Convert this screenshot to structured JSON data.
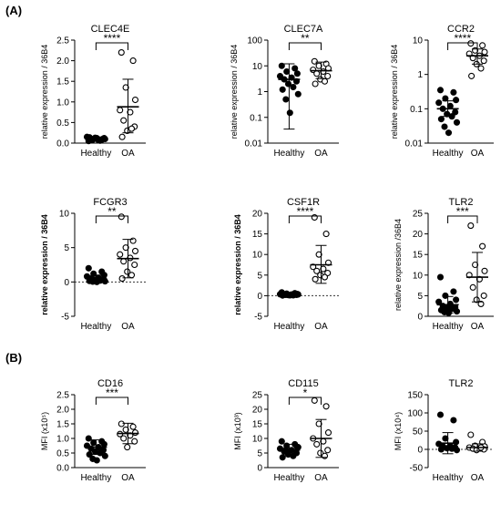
{
  "panels": [
    {
      "label": "(A)"
    },
    {
      "label": "(B)"
    }
  ],
  "colors": {
    "ink": "#000000",
    "zero_line": "#333333",
    "open_fill": "#ffffff"
  },
  "chart_data": [
    {
      "type": "scatter",
      "title": "CLEC4E",
      "ylabel": "relative expression / 36B4",
      "yscale": "linear",
      "ylim": [
        0,
        2.5
      ],
      "yticks": [
        0,
        0.5,
        1.0,
        1.5,
        2.0,
        2.5
      ],
      "yticklabels": [
        "0.0",
        "0.5",
        "1.0",
        "1.5",
        "2.0",
        "2.5"
      ],
      "zero_line": false,
      "significance": "****",
      "categories": [
        "Healthy",
        "OA"
      ],
      "series": [
        {
          "name": "Healthy",
          "marker": "filled",
          "mean": 0.1,
          "sd_low": 0.05,
          "sd_high": 0.15,
          "values": [
            0.05,
            0.08,
            0.1,
            0.12,
            0.15,
            0.07,
            0.09,
            0.11,
            0.13,
            0.06,
            0.14,
            0.1,
            0.08,
            0.12
          ]
        },
        {
          "name": "OA",
          "marker": "open",
          "mean": 0.88,
          "sd_low": 0.25,
          "sd_high": 1.55,
          "values": [
            2.2,
            2.0,
            1.35,
            1.05,
            0.8,
            0.75,
            0.55,
            0.4,
            0.3,
            0.35,
            0.15
          ]
        }
      ]
    },
    {
      "type": "scatter",
      "title": "CLEC7A",
      "ylabel": "relative expression / 36B4",
      "yscale": "log",
      "ylim": [
        0.01,
        100
      ],
      "yticks": [
        0.01,
        0.1,
        1,
        10,
        100
      ],
      "yticklabels": [
        "0.01",
        "0.1",
        "1",
        "10",
        "100"
      ],
      "zero_line": false,
      "significance": "**",
      "categories": [
        "Healthy",
        "OA"
      ],
      "series": [
        {
          "name": "Healthy",
          "marker": "filled",
          "mean": 3.0,
          "sd_low": 0.035,
          "sd_high": 12,
          "values": [
            10,
            8,
            6,
            5,
            4,
            3.5,
            3,
            2.5,
            2,
            1.5,
            1.2,
            0.8,
            0.5,
            0.15
          ]
        },
        {
          "name": "OA",
          "marker": "open",
          "mean": 6.5,
          "sd_low": 3.2,
          "sd_high": 14,
          "values": [
            15,
            12,
            10,
            8,
            7,
            6,
            5,
            4,
            3,
            2.5,
            2
          ]
        }
      ]
    },
    {
      "type": "scatter",
      "title": "CCR2",
      "ylabel": "relative expression / 36B4",
      "yscale": "log",
      "ylim": [
        0.01,
        10
      ],
      "yticks": [
        0.01,
        0.1,
        1,
        10
      ],
      "yticklabels": [
        "0.01",
        "0.1",
        "1",
        "10"
      ],
      "zero_line": false,
      "significance": "****",
      "categories": [
        "Healthy",
        "OA"
      ],
      "series": [
        {
          "name": "Healthy",
          "marker": "filled",
          "mean": 0.1,
          "sd_low": 0.06,
          "sd_high": 0.17,
          "values": [
            0.35,
            0.3,
            0.2,
            0.18,
            0.15,
            0.12,
            0.1,
            0.08,
            0.07,
            0.06,
            0.05,
            0.04,
            0.03,
            0.02
          ]
        },
        {
          "name": "OA",
          "marker": "open",
          "mean": 3.5,
          "sd_low": 2.0,
          "sd_high": 5.5,
          "values": [
            8,
            7,
            5,
            4.5,
            4,
            3.5,
            3,
            2.5,
            2,
            1.5,
            0.9
          ]
        }
      ]
    },
    {
      "type": "scatter",
      "title": "FCGR3",
      "ylabel": "relative expression / 36B4",
      "ylabel_bold": true,
      "yscale": "linear",
      "ylim": [
        -5,
        10
      ],
      "yticks": [
        -5,
        0,
        5,
        10
      ],
      "yticklabels": [
        "-5",
        "0",
        "5",
        "10"
      ],
      "zero_line": true,
      "significance": "**",
      "categories": [
        "Healthy",
        "OA"
      ],
      "series": [
        {
          "name": "Healthy",
          "marker": "filled",
          "mean": 0.5,
          "sd_low": 0.1,
          "sd_high": 1.0,
          "values": [
            2.0,
            1.5,
            1.2,
            1.0,
            0.8,
            0.6,
            0.5,
            0.4,
            0.3,
            0.2,
            0.15,
            0.1,
            0.05,
            0.0
          ]
        },
        {
          "name": "OA",
          "marker": "open",
          "mean": 3.4,
          "sd_low": 0.6,
          "sd_high": 6.2,
          "values": [
            9.5,
            6.0,
            5.0,
            4.5,
            4.0,
            3.5,
            3.0,
            2.5,
            1.5,
            1.0,
            0.5
          ]
        }
      ]
    },
    {
      "type": "scatter",
      "title": "CSF1R",
      "ylabel": "relative expression / 36B4",
      "ylabel_bold": true,
      "yscale": "linear",
      "ylim": [
        -5,
        20
      ],
      "yticks": [
        -5,
        0,
        5,
        10,
        15,
        20
      ],
      "yticklabels": [
        "-5",
        "0",
        "5",
        "10",
        "15",
        "20"
      ],
      "zero_line": true,
      "significance": "****",
      "categories": [
        "Healthy",
        "OA"
      ],
      "series": [
        {
          "name": "Healthy",
          "marker": "filled",
          "mean": 0.3,
          "sd_low": 0.1,
          "sd_high": 0.5,
          "values": [
            0.8,
            0.6,
            0.5,
            0.4,
            0.35,
            0.3,
            0.25,
            0.2,
            0.15,
            0.1,
            0.05,
            0.3,
            0.2,
            0.1
          ]
        },
        {
          "name": "OA",
          "marker": "open",
          "mean": 7.5,
          "sd_low": 3.0,
          "sd_high": 12.2,
          "values": [
            19,
            15,
            10,
            8,
            7,
            6.5,
            6,
            5.5,
            5,
            4.5,
            4
          ]
        }
      ]
    },
    {
      "type": "scatter",
      "title": "TLR2",
      "ylabel": "relative expression /36B4",
      "yscale": "linear",
      "ylim": [
        0,
        25
      ],
      "yticks": [
        0,
        5,
        10,
        15,
        20,
        25
      ],
      "yticklabels": [
        "0",
        "5",
        "10",
        "15",
        "20",
        "25"
      ],
      "zero_line": false,
      "significance": "***",
      "categories": [
        "Healthy",
        "OA"
      ],
      "series": [
        {
          "name": "Healthy",
          "marker": "filled",
          "mean": 2.8,
          "sd_low": 0.8,
          "sd_high": 4.8,
          "values": [
            9.5,
            6,
            5,
            4,
            3.5,
            3,
            2.5,
            2.2,
            2,
            1.8,
            1.5,
            1.2,
            1,
            0.8
          ]
        },
        {
          "name": "OA",
          "marker": "open",
          "mean": 9.5,
          "sd_low": 3.5,
          "sd_high": 15.5,
          "values": [
            22,
            17,
            12.5,
            11,
            10,
            9,
            7,
            5,
            4,
            3
          ]
        }
      ]
    },
    {
      "type": "scatter",
      "title": "CD16",
      "ylabel": "MFI (x10⁵)",
      "yscale": "linear",
      "ylim": [
        0,
        2.5
      ],
      "yticks": [
        0,
        0.5,
        1.0,
        1.5,
        2.0,
        2.5
      ],
      "yticklabels": [
        "0.0",
        "0.5",
        "1.0",
        "1.5",
        "2.0",
        "2.5"
      ],
      "zero_line": false,
      "significance": "***",
      "categories": [
        "Healthy",
        "OA"
      ],
      "series": [
        {
          "name": "Healthy",
          "marker": "filled",
          "mean": 0.7,
          "sd_low": 0.45,
          "sd_high": 0.95,
          "values": [
            1.0,
            0.9,
            0.85,
            0.8,
            0.75,
            0.7,
            0.65,
            0.6,
            0.55,
            0.5,
            0.45,
            0.4,
            0.3,
            0.25
          ]
        },
        {
          "name": "OA",
          "marker": "open",
          "mean": 1.17,
          "sd_low": 0.82,
          "sd_high": 1.52,
          "values": [
            1.5,
            1.4,
            1.3,
            1.2,
            1.15,
            1.1,
            1.0,
            0.9,
            0.7
          ]
        }
      ]
    },
    {
      "type": "scatter",
      "title": "CD115",
      "ylabel": "MFI (x10³)",
      "yscale": "linear",
      "ylim": [
        0,
        25
      ],
      "yticks": [
        0,
        5,
        10,
        15,
        20,
        25
      ],
      "yticklabels": [
        "0",
        "5",
        "10",
        "15",
        "20",
        "25"
      ],
      "zero_line": false,
      "significance": "*",
      "categories": [
        "Healthy",
        "OA"
      ],
      "series": [
        {
          "name": "Healthy",
          "marker": "filled",
          "mean": 6.0,
          "sd_low": 4.0,
          "sd_high": 8.0,
          "values": [
            9,
            8,
            7.5,
            7,
            6.5,
            6,
            5.5,
            5,
            4.5,
            4,
            3.5,
            7,
            6
          ]
        },
        {
          "name": "OA",
          "marker": "open",
          "mean": 10.0,
          "sd_low": 3.5,
          "sd_high": 16.5,
          "values": [
            23,
            21,
            15,
            12,
            10,
            9,
            8,
            6,
            5,
            4
          ]
        }
      ]
    },
    {
      "type": "scatter",
      "title": "TLR2",
      "ylabel": "MFI (x10⁴)",
      "yscale": "linear",
      "ylim": [
        -50,
        150
      ],
      "yticks": [
        -50,
        0,
        50,
        100,
        150
      ],
      "yticklabels": [
        "-50",
        "0",
        "50",
        "100",
        "150"
      ],
      "zero_line": true,
      "significance": "",
      "categories": [
        "Healthy",
        "OA"
      ],
      "series": [
        {
          "name": "Healthy",
          "marker": "filled",
          "mean": 17,
          "sd_low": -12,
          "sd_high": 46,
          "values": [
            95,
            80,
            30,
            20,
            15,
            10,
            8,
            5,
            3,
            2,
            0,
            -2
          ]
        },
        {
          "name": "OA",
          "marker": "open",
          "mean": 5,
          "sd_low": -5,
          "sd_high": 15,
          "values": [
            40,
            20,
            10,
            8,
            5,
            3,
            2,
            0,
            -2,
            5
          ]
        }
      ]
    }
  ]
}
